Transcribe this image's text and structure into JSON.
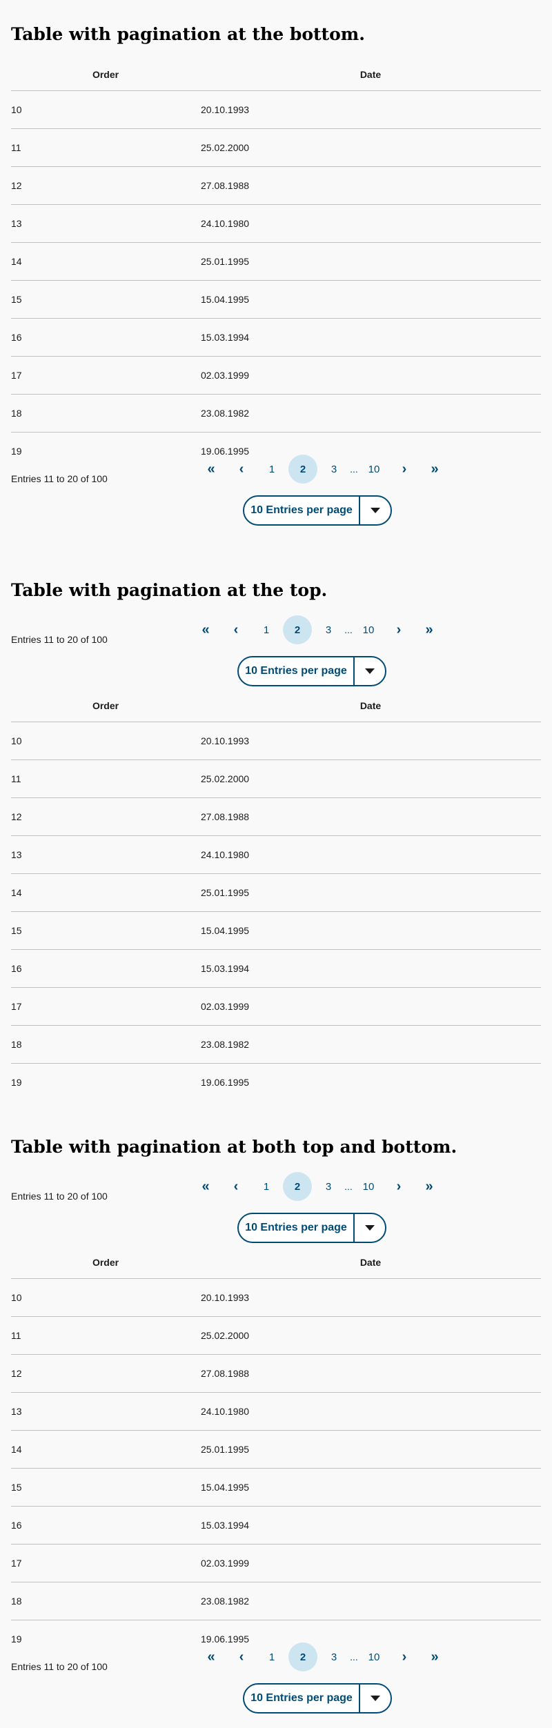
{
  "columns": {
    "order": "Order",
    "date": "Date"
  },
  "rows": [
    {
      "order": "10",
      "date": "20.10.1993"
    },
    {
      "order": "11",
      "date": "25.02.2000"
    },
    {
      "order": "12",
      "date": "27.08.1988"
    },
    {
      "order": "13",
      "date": "24.10.1980"
    },
    {
      "order": "14",
      "date": "25.01.1995"
    },
    {
      "order": "15",
      "date": "15.04.1995"
    },
    {
      "order": "16",
      "date": "15.03.1994"
    },
    {
      "order": "17",
      "date": "02.03.1999"
    },
    {
      "order": "18",
      "date": "23.08.1982"
    },
    {
      "order": "19",
      "date": "19.06.1995"
    }
  ],
  "pagination": {
    "first": "«",
    "prev": "‹",
    "pages": [
      "1",
      "2",
      "3"
    ],
    "current": "2",
    "ellipsis": "...",
    "last_page": "10",
    "next": "›",
    "last": "»",
    "entries_text": "Entries 11 to 20 of 100",
    "per_page_label": "10 Entries per page"
  },
  "sections": [
    {
      "title": "Table with pagination at the bottom."
    },
    {
      "title": "Table with pagination at the top."
    },
    {
      "title": "Table with pagination at both top and bottom."
    }
  ],
  "colors": {
    "accent": "#004b76",
    "current_bg": "#cde5f1",
    "divider": "#bfbfbf"
  }
}
